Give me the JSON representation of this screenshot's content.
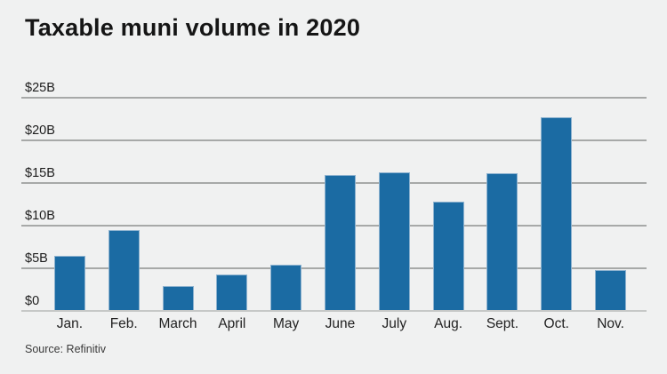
{
  "page": {
    "background": "#f0f1f1"
  },
  "chart_data": {
    "type": "bar",
    "title": "Taxable muni volume in 2020",
    "categories": [
      "Jan.",
      "Feb.",
      "March",
      "April",
      "May",
      "June",
      "July",
      "Aug.",
      "Sept.",
      "Oct.",
      "Nov."
    ],
    "values": [
      6.5,
      9.5,
      2.9,
      4.3,
      5.4,
      15.9,
      16.2,
      12.8,
      16.1,
      22.7,
      4.8
    ],
    "unit": "billions of US dollars",
    "xlabel": "",
    "ylabel": "",
    "y_ticks": [
      "$0",
      "$5B",
      "$10B",
      "$15B",
      "$20B",
      "$25B"
    ],
    "y_tick_values": [
      0,
      5,
      10,
      15,
      20,
      25
    ],
    "ylim": [
      0,
      25
    ],
    "grid": true,
    "legend": false,
    "bar_color": "#1b6ba3",
    "bar_edge_color": "#8db2cf",
    "gridline_color": "#a7a9a8",
    "axis_line_color": "#c6c8c7",
    "source": "Source: Refinitiv"
  }
}
